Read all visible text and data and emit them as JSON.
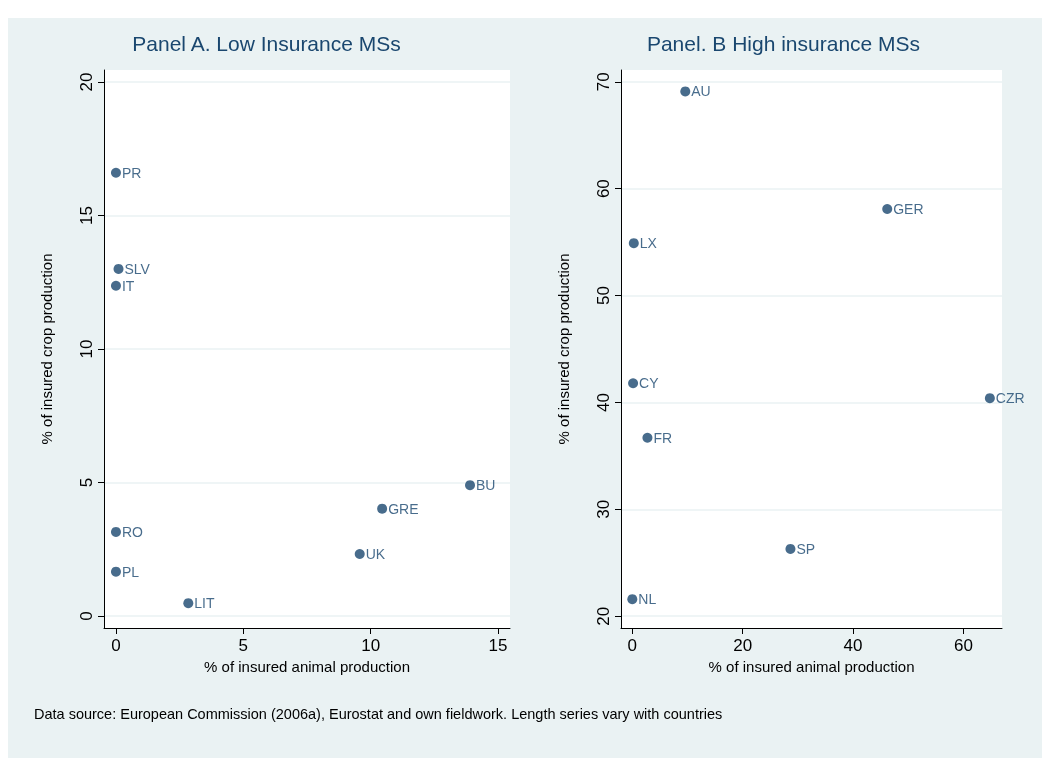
{
  "chart_data": [
    {
      "type": "scatter",
      "title": "Panel A. Low Insurance MSs",
      "xlabel": "% of insured animal production",
      "ylabel": "% of insured crop production",
      "x": [
        0,
        0.1,
        0,
        0,
        0,
        2.84,
        9.57,
        10.45,
        13.9
      ],
      "series": [
        {
          "color": "#1a476f",
          "values": [
            16.6,
            13.0,
            12.37,
            3.15,
            1.66,
            0.48,
            2.32,
            4.02,
            4.9
          ]
        }
      ],
      "xlim": [
        -0.47,
        15.47
      ],
      "ylim": [
        -0.45,
        20.45
      ],
      "xticks": [
        0,
        5,
        10,
        15
      ],
      "yticks": [
        0,
        5,
        10,
        15,
        20
      ],
      "grid": "y",
      "marker": "circle",
      "annotations": [
        {
          "text": "PR",
          "x": 0,
          "y": 16.6
        },
        {
          "text": "SLV",
          "x": 0.1,
          "y": 13.0
        },
        {
          "text": "IT",
          "x": 0,
          "y": 12.37
        },
        {
          "text": "RO",
          "x": 0,
          "y": 3.15
        },
        {
          "text": "PL",
          "x": 0,
          "y": 1.66
        },
        {
          "text": "LIT",
          "x": 2.84,
          "y": 0.48
        },
        {
          "text": "UK",
          "x": 9.57,
          "y": 2.32
        },
        {
          "text": "GRE",
          "x": 10.45,
          "y": 4.02
        },
        {
          "text": "BU",
          "x": 13.9,
          "y": 4.9
        },
        "Data source:  European Commission (2006a), Eurostat and own fieldwork. Length series vary with countries"
      ]
    },
    {
      "type": "scatter",
      "title": "Panel. B High insurance MSs",
      "xlabel": "% of insured animal production",
      "ylabel": "% of insured crop production",
      "x": [
        9.6,
        46.2,
        0.27,
        0.14,
        64.8,
        2.74,
        28.66,
        0
      ],
      "series": [
        {
          "color": "#1a476f",
          "values": [
            69.1,
            58.1,
            54.9,
            41.8,
            40.4,
            36.7,
            26.3,
            21.6
          ]
        }
      ],
      "xlim": [
        -2.05,
        67.0
      ],
      "ylim": [
        18.9,
        71.1
      ],
      "xticks": [
        0,
        20,
        40,
        60
      ],
      "yticks": [
        20,
        30,
        40,
        50,
        60,
        70
      ],
      "grid": "y",
      "marker": "circle",
      "annotations": [
        {
          "text": "AU",
          "x": 9.6,
          "y": 69.1
        },
        {
          "text": "GER",
          "x": 46.2,
          "y": 58.1
        },
        {
          "text": "LX",
          "x": 0.27,
          "y": 54.9
        },
        {
          "text": "CY",
          "x": 0.14,
          "y": 41.8
        },
        {
          "text": "CZR",
          "x": 64.8,
          "y": 40.4
        },
        {
          "text": "FR",
          "x": 2.74,
          "y": 36.7
        },
        {
          "text": "SP",
          "x": 28.66,
          "y": 26.3
        },
        {
          "text": "NL",
          "x": 0,
          "y": 21.6
        }
      ]
    }
  ]
}
